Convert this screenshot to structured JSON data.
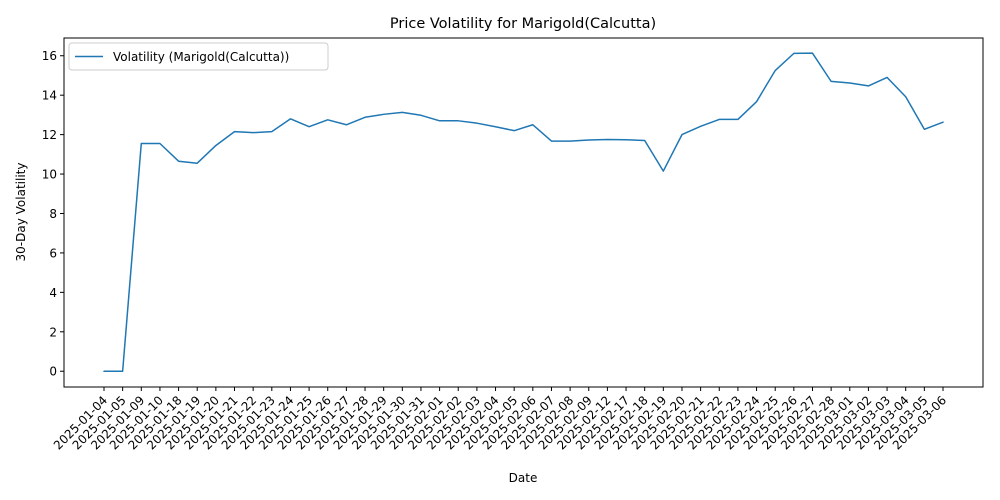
{
  "chart_data": {
    "type": "line",
    "title": "Price Volatility for Marigold(Calcutta)",
    "xlabel": "Date",
    "ylabel": "30-Day Volatility",
    "ylim": [
      -0.8,
      16.9
    ],
    "yticks": [
      0,
      2,
      4,
      6,
      8,
      10,
      12,
      14,
      16
    ],
    "grid": false,
    "legend_position": "top-left",
    "x": [
      "2025-01-04",
      "2025-01-05",
      "2025-01-09",
      "2025-01-10",
      "2025-01-18",
      "2025-01-19",
      "2025-01-20",
      "2025-01-21",
      "2025-01-22",
      "2025-01-23",
      "2025-01-24",
      "2025-01-25",
      "2025-01-26",
      "2025-01-27",
      "2025-01-28",
      "2025-01-29",
      "2025-01-30",
      "2025-01-31",
      "2025-02-01",
      "2025-02-02",
      "2025-02-03",
      "2025-02-04",
      "2025-02-05",
      "2025-02-06",
      "2025-02-07",
      "2025-02-08",
      "2025-02-09",
      "2025-02-12",
      "2025-02-17",
      "2025-02-18",
      "2025-02-19",
      "2025-02-20",
      "2025-02-21",
      "2025-02-22",
      "2025-02-23",
      "2025-02-24",
      "2025-02-25",
      "2025-02-26",
      "2025-02-27",
      "2025-02-28",
      "2025-03-01",
      "2025-03-02",
      "2025-03-03",
      "2025-03-04",
      "2025-03-05",
      "2025-03-06"
    ],
    "series": [
      {
        "name": "Volatility (Marigold(Calcutta))",
        "color": "#1f77b4",
        "values": [
          0.0,
          0.0,
          11.55,
          11.55,
          10.65,
          10.55,
          11.45,
          12.15,
          12.1,
          12.15,
          12.8,
          12.4,
          12.75,
          12.5,
          12.88,
          13.03,
          13.13,
          12.98,
          12.7,
          12.7,
          12.58,
          12.4,
          12.2,
          12.5,
          11.67,
          11.67,
          11.73,
          11.75,
          11.74,
          11.7,
          10.15,
          12.0,
          12.42,
          12.77,
          12.77,
          13.67,
          15.25,
          16.12,
          16.13,
          14.7,
          14.62,
          14.47,
          14.9,
          13.92,
          12.27,
          12.63
        ]
      }
    ]
  }
}
